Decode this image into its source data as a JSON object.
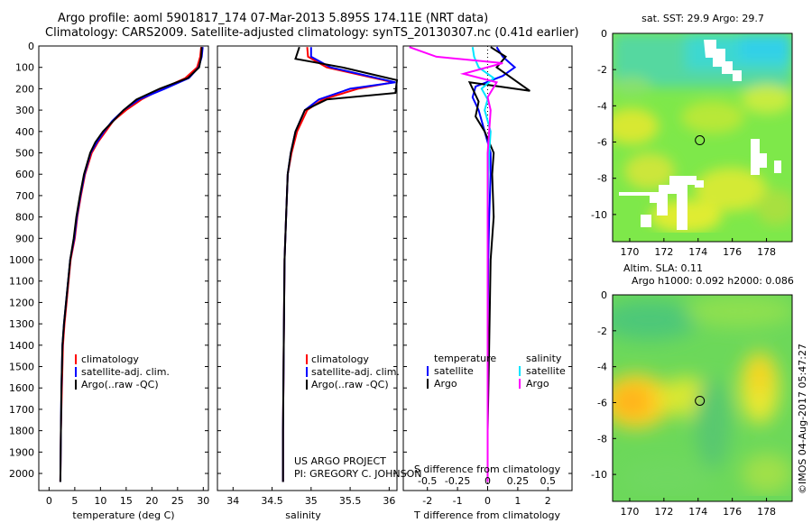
{
  "titles": {
    "line1": "Argo profile: aoml 5901817_174 07-Mar-2013 5.895S 174.11E (NRT data)",
    "line2": "Climatology: CARS2009. Satellite-adjusted climatology: synTS_20130307.nc (0.41d earlier)"
  },
  "colors": {
    "climatology": "#ff0000",
    "satellite": "#0000ff",
    "argo": "#000000",
    "salinity_satellite": "#00e5ff",
    "salinity_argo": "#ff00ff"
  },
  "legend": {
    "climatology": "climatology",
    "satellite_clim": "satellite-adj. clim.",
    "argo_raw": "Argo(..raw -QC)",
    "temperature_header": "temperature",
    "salinity_header": "salinity",
    "satellite": "satellite",
    "argo": "Argo"
  },
  "project": {
    "line1": "US ARGO PROJECT",
    "line2": "PI: GREGORY C. JOHNSON"
  },
  "sst_title": "sat. SST: 29.9 Argo: 29.7",
  "sla_title1": "Altim. SLA: 0.11",
  "sla_title2": "Argo h1000: 0.092 h2000: 0.086",
  "imos_stamp": "©IMOS 04-Aug-2017 05:47:27",
  "chart_data": [
    {
      "type": "line",
      "name": "temperature",
      "xlabel": "temperature (deg C)",
      "ylabel": "",
      "xlim": [
        -2,
        31
      ],
      "ylim": [
        2080,
        0
      ],
      "xticks": [
        0,
        5,
        10,
        15,
        20,
        25,
        30
      ],
      "yticks": [
        0,
        100,
        200,
        300,
        400,
        500,
        600,
        700,
        800,
        900,
        1000,
        1100,
        1200,
        1300,
        1400,
        1500,
        1600,
        1700,
        1800,
        1900,
        2000
      ],
      "series": [
        {
          "name": "climatology",
          "color": "#ff0000",
          "x": [
            29.6,
            29.4,
            28.8,
            26.5,
            22,
            18,
            15,
            12.5,
            11,
            9.5,
            8.3,
            7,
            6.2,
            5.5,
            5,
            4.2,
            3.8,
            3.4,
            3,
            2.7,
            2.5,
            2.3,
            2.2
          ],
          "y": [
            5,
            50,
            100,
            150,
            200,
            250,
            300,
            350,
            400,
            450,
            500,
            600,
            700,
            800,
            900,
            1000,
            1100,
            1200,
            1300,
            1400,
            1600,
            1800,
            2040
          ]
        },
        {
          "name": "satellite-adj. clim.",
          "color": "#0000ff",
          "x": [
            29.9,
            29.7,
            29.1,
            27.2,
            22.5,
            17.5,
            14.5,
            12.3,
            10.7,
            9.3,
            8.1,
            6.9,
            6.1,
            5.4,
            4.9,
            4.1,
            3.7,
            3.3,
            2.9,
            2.6,
            2.4,
            2.3,
            2.2
          ],
          "y": [
            5,
            50,
            100,
            150,
            200,
            250,
            300,
            350,
            400,
            450,
            500,
            600,
            700,
            800,
            900,
            1000,
            1100,
            1200,
            1300,
            1400,
            1600,
            1800,
            2040
          ]
        },
        {
          "name": "Argo(..raw -QC)",
          "color": "#000000",
          "x": [
            29.7,
            29.6,
            29.2,
            27,
            21.5,
            17,
            14.5,
            12.5,
            10.5,
            9,
            8,
            6.8,
            6,
            5.3,
            4.8,
            4.1,
            3.7,
            3.3,
            2.9,
            2.6,
            2.4,
            2.3,
            2.2
          ],
          "y": [
            5,
            50,
            100,
            150,
            200,
            250,
            300,
            350,
            400,
            450,
            500,
            600,
            700,
            800,
            900,
            1000,
            1100,
            1200,
            1300,
            1400,
            1600,
            1800,
            2040
          ]
        }
      ]
    },
    {
      "type": "line",
      "name": "salinity",
      "xlabel": "salinity",
      "xlim": [
        33.8,
        36.1
      ],
      "ylim": [
        2080,
        0
      ],
      "xticks": [
        34,
        34.5,
        35,
        35.5,
        36
      ],
      "series": [
        {
          "name": "climatology",
          "color": "#ff0000",
          "x": [
            34.95,
            34.96,
            35.2,
            36.05,
            35.6,
            35.15,
            34.95,
            34.82,
            34.75,
            34.7,
            34.68,
            34.66,
            34.65,
            34.64,
            34.64
          ],
          "y": [
            5,
            50,
            100,
            170,
            200,
            250,
            300,
            400,
            500,
            600,
            800,
            1000,
            1400,
            1800,
            2040
          ]
        },
        {
          "name": "satellite-adj. clim.",
          "color": "#0000ff",
          "x": [
            35.0,
            35.0,
            35.25,
            36.08,
            35.5,
            35.1,
            34.92,
            34.8,
            34.74,
            34.7,
            34.68,
            34.66,
            34.65,
            34.64,
            34.64
          ],
          "y": [
            5,
            50,
            100,
            170,
            200,
            250,
            300,
            400,
            500,
            600,
            800,
            1000,
            1400,
            1800,
            2040
          ]
        },
        {
          "name": "Argo(..raw -QC)",
          "color": "#000000",
          "x": [
            34.85,
            34.8,
            35.4,
            36.1,
            36.08,
            35.2,
            34.92,
            34.8,
            34.74,
            34.7,
            34.68,
            34.66,
            34.65,
            34.64,
            34.64
          ],
          "y": [
            5,
            60,
            100,
            160,
            220,
            250,
            300,
            400,
            500,
            600,
            800,
            1000,
            1400,
            1800,
            2040
          ]
        }
      ]
    },
    {
      "type": "line",
      "name": "differences",
      "xlabel_top": "S difference from climatology",
      "xlabel": "T difference from climatology",
      "xlim": [
        -2.8,
        2.8
      ],
      "ylim": [
        2080,
        0
      ],
      "xticks": [
        -2,
        -1,
        0,
        1,
        2
      ],
      "sticks": [
        "-0.5",
        "-0.25",
        "0",
        "0.25",
        "0.5"
      ],
      "series": [
        {
          "name": "temperature satellite",
          "color": "#0000ff",
          "x": [
            0.3,
            0.5,
            0.9,
            0.5,
            -0.4,
            -0.5,
            -0.3,
            -0.1,
            0.1,
            0.1,
            0.05,
            0.02,
            0,
            0,
            0
          ],
          "y": [
            5,
            50,
            100,
            140,
            190,
            240,
            300,
            400,
            500,
            600,
            800,
            1000,
            1400,
            1800,
            2040
          ]
        },
        {
          "name": "temperature Argo",
          "color": "#000000",
          "x": [
            0.1,
            0.6,
            0.3,
            1.4,
            -0.6,
            -0.3,
            -0.4,
            -0.1,
            0.2,
            0.15,
            0.2,
            0.1,
            0.05,
            0,
            0
          ],
          "y": [
            5,
            50,
            100,
            210,
            170,
            260,
            330,
            400,
            500,
            600,
            800,
            1000,
            1400,
            1800,
            2040
          ]
        },
        {
          "name": "salinity satellite",
          "color": "#00e5ff",
          "x": [
            -0.5,
            -0.45,
            -0.3,
            0.2,
            -0.2,
            0,
            -0.1,
            0.1,
            0.05,
            0.02,
            0,
            0,
            0,
            0,
            0
          ],
          "y": [
            5,
            50,
            100,
            150,
            200,
            250,
            300,
            400,
            500,
            600,
            800,
            1000,
            1400,
            1800,
            2040
          ]
        },
        {
          "name": "salinity Argo",
          "color": "#ff00ff",
          "x": [
            -2.6,
            -1.7,
            0.5,
            -0.8,
            0.3,
            0,
            0.1,
            0.05,
            0,
            0,
            0,
            0,
            0,
            0,
            0
          ],
          "y": [
            5,
            50,
            80,
            130,
            170,
            240,
            300,
            400,
            500,
            600,
            800,
            1000,
            1400,
            1800,
            2040
          ]
        }
      ]
    },
    {
      "type": "heatmap",
      "name": "sat-sst-map",
      "title": "sat. SST: 29.9 Argo: 29.7",
      "xlim": [
        169,
        179.5
      ],
      "ylim": [
        -11.5,
        0
      ],
      "xticks": [
        170,
        172,
        174,
        176,
        178
      ],
      "yticks": [
        0,
        -2,
        -4,
        -6,
        -8,
        -10
      ],
      "marker": {
        "x": 174.1,
        "y": -5.9
      }
    },
    {
      "type": "heatmap",
      "name": "altim-sla-map",
      "title": "Altim. SLA: 0.11",
      "xlim": [
        169,
        179.5
      ],
      "ylim": [
        -11.5,
        0
      ],
      "xticks": [
        170,
        172,
        174,
        176,
        178
      ],
      "yticks": [
        0,
        -2,
        -4,
        -6,
        -8,
        -10
      ],
      "marker": {
        "x": 174.1,
        "y": -5.9
      }
    }
  ]
}
